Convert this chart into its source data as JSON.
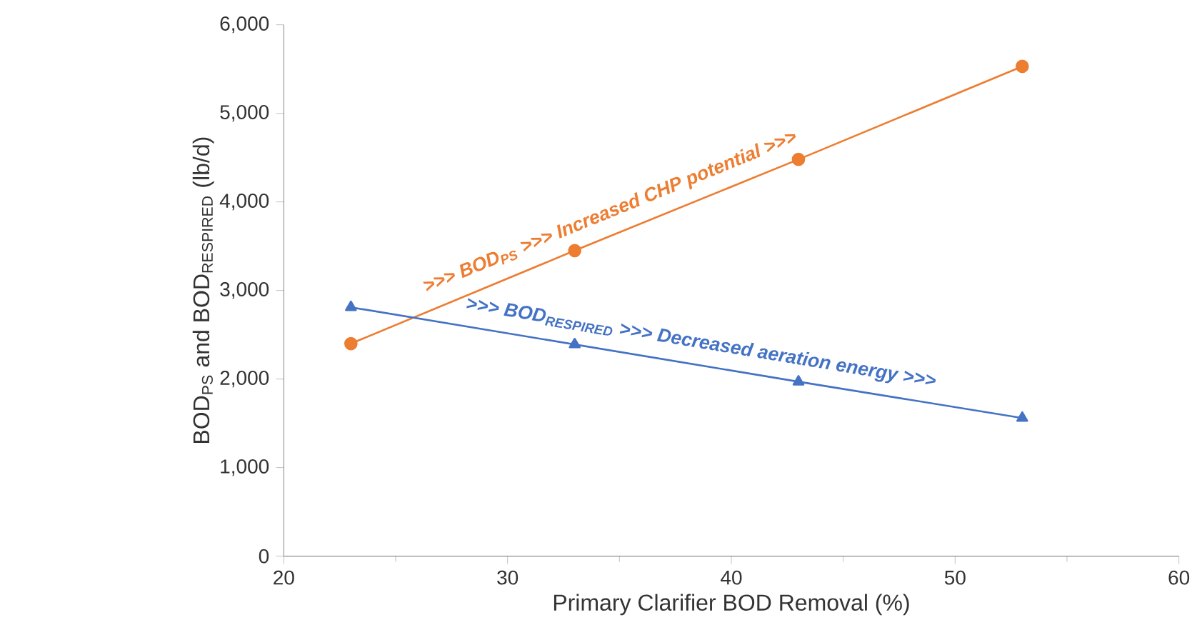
{
  "chart_data": {
    "type": "line",
    "xlabel": "Primary Clarifier BOD Removal (%)",
    "ylabel": "BOD$_{PS}$ and BOD$_{RESPIRED}$ (lb/d)",
    "x": [
      23,
      33,
      43,
      53
    ],
    "series": [
      {
        "color": "#ed7d31",
        "marker": "circle",
        "values": [
          2400,
          3450,
          4480,
          5530
        ]
      },
      {
        "color": "#4472c4",
        "marker": "triangle",
        "values": [
          2810,
          2390,
          1970,
          1560
        ]
      }
    ],
    "annotations": [
      ">>> BOD$_{PS}$ >>> Increased CHP potential >>>",
      ">>> BOD$_{RESPIRED}$ >>> Decreased aeration energy >>>"
    ],
    "xlim": [
      20,
      60
    ],
    "xticks": [
      20,
      30,
      40,
      50,
      60
    ],
    "ylim": [
      0,
      6000
    ],
    "yticks": [
      {
        "value": 0,
        "label": "0"
      },
      {
        "value": 1000,
        "label": "1,000"
      },
      {
        "value": 2000,
        "label": "2,000"
      },
      {
        "value": 3000,
        "label": "3,000"
      },
      {
        "value": 4000,
        "label": "4,000"
      },
      {
        "value": 5000,
        "label": "5,000"
      },
      {
        "value": 6000,
        "label": "6,000"
      }
    ],
    "grid": false
  }
}
